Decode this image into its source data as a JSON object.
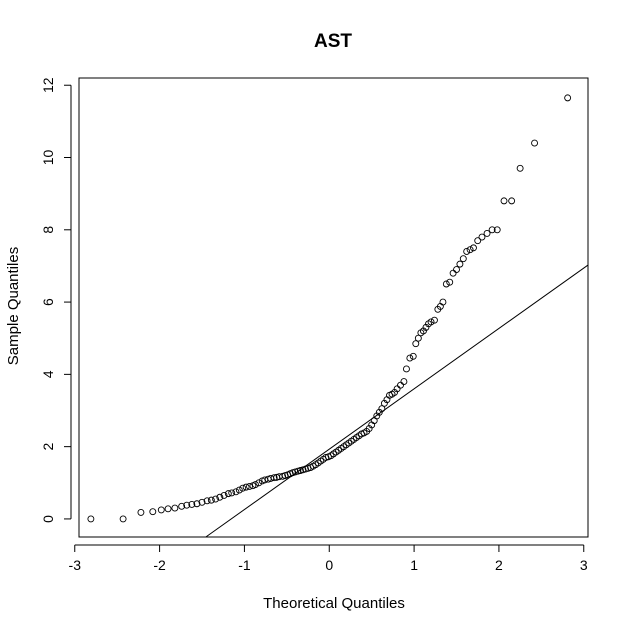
{
  "chart_data": {
    "type": "scatter",
    "title": "AST",
    "xlabel": "Theoretical Quantiles",
    "ylabel": "Sample Quantiles",
    "xlim": [
      -2.95,
      3.05
    ],
    "ylim": [
      -0.5,
      12.2
    ],
    "x_ticks": [
      -3,
      -2,
      -1,
      0,
      1,
      2,
      3
    ],
    "x_tick_labels": [
      "-3",
      "-2",
      "-1",
      "0",
      "1",
      "2",
      "3"
    ],
    "y_ticks": [
      0,
      2,
      4,
      6,
      8,
      10,
      12
    ],
    "y_tick_labels": [
      "0",
      "2",
      "4",
      "6",
      "8",
      "10",
      "12"
    ],
    "grid": false,
    "reference_line": {
      "intercept": 1.93,
      "slope": 1.67
    },
    "series": [
      {
        "marker": "open-circle",
        "points": [
          [
            -2.81,
            0.0
          ],
          [
            -2.43,
            0.0
          ],
          [
            -2.22,
            0.18
          ],
          [
            -2.08,
            0.2
          ],
          [
            -1.98,
            0.25
          ],
          [
            -1.9,
            0.28
          ],
          [
            -1.82,
            0.3
          ],
          [
            -1.74,
            0.35
          ],
          [
            -1.68,
            0.38
          ],
          [
            -1.62,
            0.4
          ],
          [
            -1.56,
            0.42
          ],
          [
            -1.5,
            0.46
          ],
          [
            -1.44,
            0.5
          ],
          [
            -1.39,
            0.52
          ],
          [
            -1.34,
            0.55
          ],
          [
            -1.29,
            0.6
          ],
          [
            -1.24,
            0.65
          ],
          [
            -1.19,
            0.7
          ],
          [
            -1.15,
            0.72
          ],
          [
            -1.1,
            0.75
          ],
          [
            -1.06,
            0.8
          ],
          [
            -1.02,
            0.85
          ],
          [
            -0.98,
            0.88
          ],
          [
            -0.94,
            0.9
          ],
          [
            -0.9,
            0.92
          ],
          [
            -0.87,
            0.95
          ],
          [
            -0.83,
            1.0
          ],
          [
            -0.79,
            1.05
          ],
          [
            -0.76,
            1.08
          ],
          [
            -0.72,
            1.1
          ],
          [
            -0.69,
            1.12
          ],
          [
            -0.65,
            1.14
          ],
          [
            -0.62,
            1.15
          ],
          [
            -0.59,
            1.17
          ],
          [
            -0.55,
            1.18
          ],
          [
            -0.52,
            1.2
          ],
          [
            -0.49,
            1.22
          ],
          [
            -0.46,
            1.25
          ],
          [
            -0.43,
            1.28
          ],
          [
            -0.4,
            1.3
          ],
          [
            -0.37,
            1.32
          ],
          [
            -0.34,
            1.34
          ],
          [
            -0.31,
            1.36
          ],
          [
            -0.28,
            1.38
          ],
          [
            -0.25,
            1.4
          ],
          [
            -0.22,
            1.42
          ],
          [
            -0.19,
            1.46
          ],
          [
            -0.16,
            1.5
          ],
          [
            -0.13,
            1.55
          ],
          [
            -0.1,
            1.6
          ],
          [
            -0.07,
            1.65
          ],
          [
            -0.04,
            1.7
          ],
          [
            -0.01,
            1.72
          ],
          [
            0.02,
            1.75
          ],
          [
            0.05,
            1.8
          ],
          [
            0.08,
            1.85
          ],
          [
            0.11,
            1.9
          ],
          [
            0.14,
            1.95
          ],
          [
            0.17,
            2.0
          ],
          [
            0.2,
            2.05
          ],
          [
            0.23,
            2.1
          ],
          [
            0.26,
            2.15
          ],
          [
            0.29,
            2.2
          ],
          [
            0.32,
            2.25
          ],
          [
            0.35,
            2.3
          ],
          [
            0.38,
            2.35
          ],
          [
            0.41,
            2.38
          ],
          [
            0.44,
            2.42
          ],
          [
            0.47,
            2.5
          ],
          [
            0.5,
            2.6
          ],
          [
            0.53,
            2.72
          ],
          [
            0.56,
            2.85
          ],
          [
            0.59,
            2.95
          ],
          [
            0.62,
            3.05
          ],
          [
            0.65,
            3.2
          ],
          [
            0.68,
            3.3
          ],
          [
            0.71,
            3.42
          ],
          [
            0.74,
            3.45
          ],
          [
            0.77,
            3.5
          ],
          [
            0.8,
            3.6
          ],
          [
            0.84,
            3.7
          ],
          [
            0.88,
            3.8
          ],
          [
            0.91,
            4.15
          ],
          [
            0.95,
            4.45
          ],
          [
            0.99,
            4.5
          ],
          [
            1.02,
            4.85
          ],
          [
            1.05,
            5.0
          ],
          [
            1.08,
            5.15
          ],
          [
            1.11,
            5.2
          ],
          [
            1.14,
            5.3
          ],
          [
            1.17,
            5.4
          ],
          [
            1.2,
            5.45
          ],
          [
            1.24,
            5.5
          ],
          [
            1.28,
            5.8
          ],
          [
            1.31,
            5.88
          ],
          [
            1.34,
            6.0
          ],
          [
            1.38,
            6.5
          ],
          [
            1.42,
            6.55
          ],
          [
            1.46,
            6.8
          ],
          [
            1.5,
            6.9
          ],
          [
            1.54,
            7.05
          ],
          [
            1.58,
            7.2
          ],
          [
            1.62,
            7.4
          ],
          [
            1.66,
            7.45
          ],
          [
            1.7,
            7.5
          ],
          [
            1.75,
            7.7
          ],
          [
            1.8,
            7.8
          ],
          [
            1.86,
            7.9
          ],
          [
            1.92,
            8.0
          ],
          [
            1.98,
            8.0
          ],
          [
            2.06,
            8.8
          ],
          [
            2.15,
            8.8
          ],
          [
            2.25,
            9.7
          ],
          [
            2.42,
            10.4
          ],
          [
            2.81,
            11.65
          ]
        ]
      }
    ]
  }
}
